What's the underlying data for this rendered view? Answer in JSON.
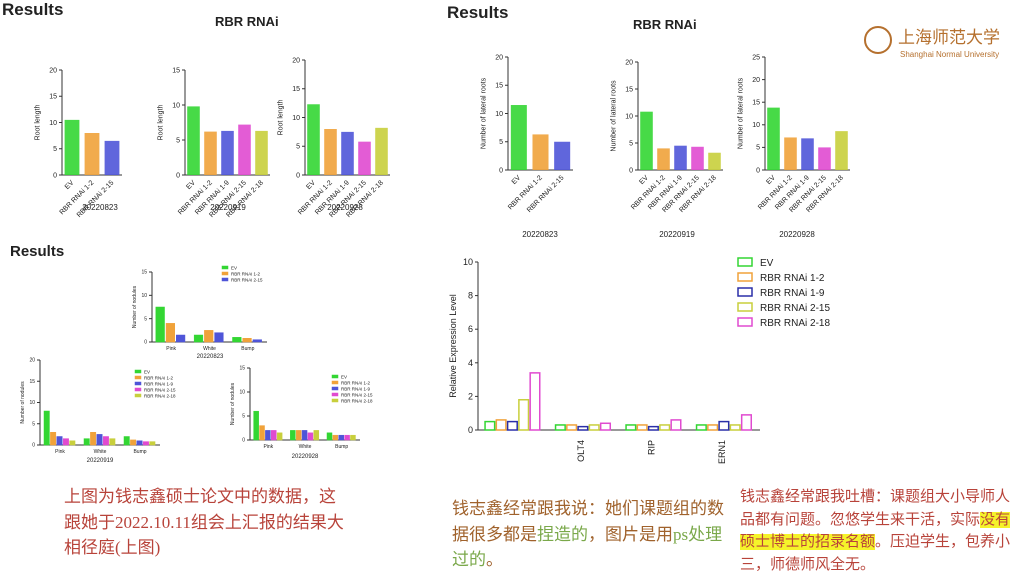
{
  "left_slide": {
    "title": "Results",
    "subtitle": "RBR  RNAi"
  },
  "right_slide": {
    "title": "Results",
    "subtitle": "RBR  RNAi",
    "logo_cn": "上海师范大学",
    "logo_en": "Shanghai Normal University"
  },
  "lower_slide": {
    "title": "Results"
  },
  "charts": [
    {
      "type": "bar",
      "ylabel": "Root  length",
      "date": "20220823",
      "categories": [
        "EV",
        "RBR  RNAi  1-2",
        "RBR  RNAi  2-15"
      ],
      "values": [
        10.5,
        8,
        6.5
      ],
      "colors": [
        "#33d633",
        "#f0a23a",
        "#4f55d8"
      ],
      "ylim": [
        0,
        20
      ],
      "yticks": [
        0,
        5,
        10,
        15,
        20
      ]
    },
    {
      "type": "bar",
      "ylabel": "Root  length",
      "date": "20220919",
      "categories": [
        "EV",
        "RBR  RNAi  1-2",
        "RBR  RNAi  1-9",
        "RBR  RNAi  2-15",
        "RBR  RNAi  2-18"
      ],
      "values": [
        9.8,
        6.2,
        6.3,
        7.2,
        6.3
      ],
      "colors": [
        "#33d633",
        "#f0a23a",
        "#4f55d8",
        "#e04ad0",
        "#c8cf3c"
      ],
      "ylim": [
        0,
        15
      ],
      "yticks": [
        0,
        5,
        10,
        15
      ]
    },
    {
      "type": "bar",
      "ylabel": "Root  length",
      "date": "20220928",
      "categories": [
        "EV",
        "RBR  RNAi  1-2",
        "RBR  RNAi  1-9",
        "RBR  RNAi  2-15",
        "RBR  RNAi  2-18"
      ],
      "values": [
        12.3,
        8,
        7.5,
        5.8,
        8.2
      ],
      "colors": [
        "#33d633",
        "#f0a23a",
        "#4f55d8",
        "#e04ad0",
        "#c8cf3c"
      ],
      "ylim": [
        0,
        20
      ],
      "yticks": [
        0,
        5,
        10,
        15,
        20
      ]
    },
    {
      "type": "bar",
      "ylabel": "Number of lateral roots",
      "date": "20220823",
      "categories": [
        "EV",
        "RBR  RNAi  1-2",
        "RBR  RNAi  2-15"
      ],
      "values": [
        11.5,
        6.3,
        5
      ],
      "colors": [
        "#33d633",
        "#f0a23a",
        "#4f55d8"
      ],
      "ylim": [
        0,
        20
      ],
      "yticks": [
        0,
        5,
        10,
        15,
        20
      ]
    },
    {
      "type": "bar",
      "ylabel": "Number of lateral roots",
      "date": "20220919",
      "categories": [
        "EV",
        "RBR  RNAi  1-2",
        "RBR  RNAi  1-9",
        "RBR  RNAi  2-15",
        "RBR  RNAi  2-18"
      ],
      "values": [
        10.8,
        4,
        4.5,
        4.3,
        3.2
      ],
      "colors": [
        "#33d633",
        "#f0a23a",
        "#4f55d8",
        "#e04ad0",
        "#c8cf3c"
      ],
      "ylim": [
        0,
        20
      ],
      "yticks": [
        0,
        5,
        10,
        15,
        20
      ]
    },
    {
      "type": "bar",
      "ylabel": "Number of lateral roots",
      "date": "20220928",
      "categories": [
        "EV",
        "RBR  RNAi  1-2",
        "RBR  RNAi  1-9",
        "RBR  RNAi  2-15",
        "RBR  RNAi  2-18"
      ],
      "values": [
        13.8,
        7.2,
        7,
        5,
        8.6
      ],
      "colors": [
        "#33d633",
        "#f0a23a",
        "#4f55d8",
        "#e04ad0",
        "#c8cf3c"
      ],
      "ylim": [
        0,
        25
      ],
      "yticks": [
        0,
        5,
        10,
        15,
        20,
        25
      ]
    },
    {
      "type": "grouped",
      "ylabel": "Number of nodules",
      "date": "20220823",
      "categories": [
        "Pink",
        "White",
        "Bump"
      ],
      "ylim": [
        0,
        15
      ],
      "yticks": [
        0,
        5,
        10,
        15
      ],
      "series": [
        {
          "name": "EV",
          "color": "#33d633",
          "values": [
            7.5,
            1.5,
            1
          ]
        },
        {
          "name": "RBR  RNAi  1-2",
          "color": "#f0a23a",
          "values": [
            4,
            2.5,
            0.8
          ]
        },
        {
          "name": "RBR  RNAi  2-15",
          "color": "#4f55d8",
          "values": [
            1.5,
            2,
            0.5
          ]
        }
      ]
    },
    {
      "type": "grouped",
      "ylabel": "Number of nodules",
      "date": "20220919",
      "categories": [
        "Pink",
        "White",
        "Bump"
      ],
      "ylim": [
        0,
        20
      ],
      "yticks": [
        0,
        5,
        10,
        15,
        20
      ],
      "series": [
        {
          "name": "EV",
          "color": "#33d633",
          "values": [
            8,
            1.5,
            2
          ]
        },
        {
          "name": "RBR  RNAi  1-2",
          "color": "#f0a23a",
          "values": [
            3,
            3,
            1.2
          ]
        },
        {
          "name": "RBR  RNAi  1-9",
          "color": "#4f55d8",
          "values": [
            2,
            2.5,
            1
          ]
        },
        {
          "name": "RBR  RNAi  2-15",
          "color": "#e04ad0",
          "values": [
            1.5,
            2,
            0.8
          ]
        },
        {
          "name": "RBR  RNAi  2-18",
          "color": "#c8cf3c",
          "values": [
            1,
            1.5,
            0.8
          ]
        }
      ]
    },
    {
      "type": "grouped",
      "ylabel": "Number of nodules",
      "date": "20220928",
      "categories": [
        "Pink",
        "White",
        "Bump"
      ],
      "ylim": [
        0,
        15
      ],
      "yticks": [
        0,
        5,
        10,
        15
      ],
      "series": [
        {
          "name": "EV",
          "color": "#33d633",
          "values": [
            6,
            2,
            1.5
          ]
        },
        {
          "name": "RBR  RNAi  1-2",
          "color": "#f0a23a",
          "values": [
            3,
            2,
            1
          ]
        },
        {
          "name": "RBR  RNAi  1-9",
          "color": "#4f55d8",
          "values": [
            2,
            2,
            1
          ]
        },
        {
          "name": "RBR  RNAi  2-15",
          "color": "#e04ad0",
          "values": [
            2,
            1.5,
            1
          ]
        },
        {
          "name": "RBR  RNAi  2-18",
          "color": "#c8cf3c",
          "values": [
            1.5,
            2,
            1
          ]
        }
      ]
    },
    {
      "type": "grouped",
      "ylabel": "Relative Expression Level",
      "categories": [
        null,
        "OLT4",
        "RIP",
        "ERN1"
      ],
      "ylim": [
        0,
        10
      ],
      "yticks": [
        0,
        2,
        4,
        6,
        8,
        10
      ],
      "series": [
        {
          "name": "EV",
          "color": "#33d633",
          "values": [
            0.5,
            0.3,
            0.3,
            0.3
          ]
        },
        {
          "name": "RBR  RNAi  1-2",
          "color": "#f0a23a",
          "values": [
            0.6,
            0.3,
            0.3,
            0.3
          ]
        },
        {
          "name": "RBR  RNAi  1-9",
          "color": "#2a2fa8",
          "values": [
            0.5,
            0.2,
            0.2,
            0.5
          ]
        },
        {
          "name": "RBR  RNAi  2-15",
          "color": "#c8cf3c",
          "values": [
            1.8,
            0.3,
            0.3,
            0.3
          ]
        },
        {
          "name": "RBR  RNAi  2-18",
          "color": "#e04ad0",
          "values": [
            3.4,
            0.4,
            0.6,
            0.9
          ]
        }
      ]
    }
  ],
  "captions": {
    "left": [
      "上图为钱志鑫硕士论文中的数据，这跟她于2022.10.11组会上汇报的结果大相径庭(上图)"
    ],
    "middle": [
      "钱志鑫经常跟我说：她们课题组的数据很多都是",
      "捏造的",
      "，图片是用",
      "ps处理过的",
      "。"
    ],
    "right": [
      "钱志鑫经常跟我吐槽：课题组大小导师人品都有问题。忽悠学生来干活，实际",
      "没有硕士博士的招录名额",
      "。压迫学生，包养小三，师德师风全无。"
    ]
  }
}
